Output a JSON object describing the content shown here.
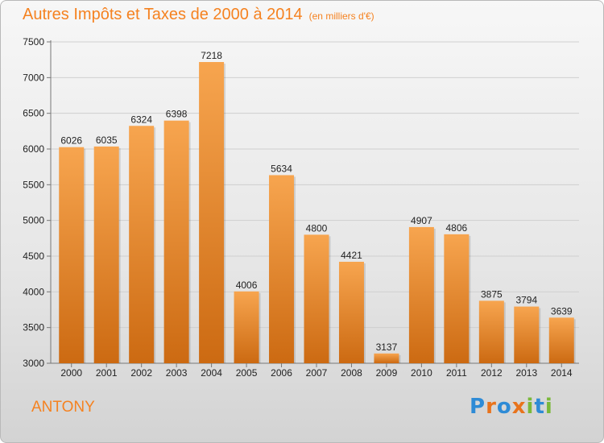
{
  "title": "Autres Impôts et Taxes de 2000 à 2014",
  "subtitle": "(en milliers d'€)",
  "footer_label": "ANTONY",
  "logo": {
    "text": "Proxiti",
    "letters": [
      {
        "ch": "P",
        "color": "#2e8bd6"
      },
      {
        "ch": "r",
        "color": "#e8731c"
      },
      {
        "ch": "o",
        "color": "#2e8bd6"
      },
      {
        "ch": "x",
        "color": "#e8731c"
      },
      {
        "ch": "i",
        "color": "#7ab83a"
      },
      {
        "ch": "t",
        "color": "#2e8bd6"
      },
      {
        "ch": "i",
        "color": "#7ab83a"
      }
    ]
  },
  "colors": {
    "accent": "#f58220",
    "bar_top": "#f7a54f",
    "bar_bottom": "#cc6a12",
    "grid": "#cfcfcf"
  },
  "chart_data": {
    "type": "bar",
    "categories": [
      "2000",
      "2001",
      "2002",
      "2003",
      "2004",
      "2005",
      "2006",
      "2007",
      "2008",
      "2009",
      "2010",
      "2011",
      "2012",
      "2013",
      "2014"
    ],
    "values": [
      6026,
      6035,
      6324,
      6398,
      7218,
      4006,
      5634,
      4800,
      4421,
      3137,
      4907,
      4806,
      3875,
      3794,
      3639
    ],
    "ylim": [
      3000,
      7500
    ],
    "yticks": [
      3000,
      3500,
      4000,
      4500,
      5000,
      5500,
      6000,
      6500,
      7000,
      7500
    ],
    "grid": true
  }
}
